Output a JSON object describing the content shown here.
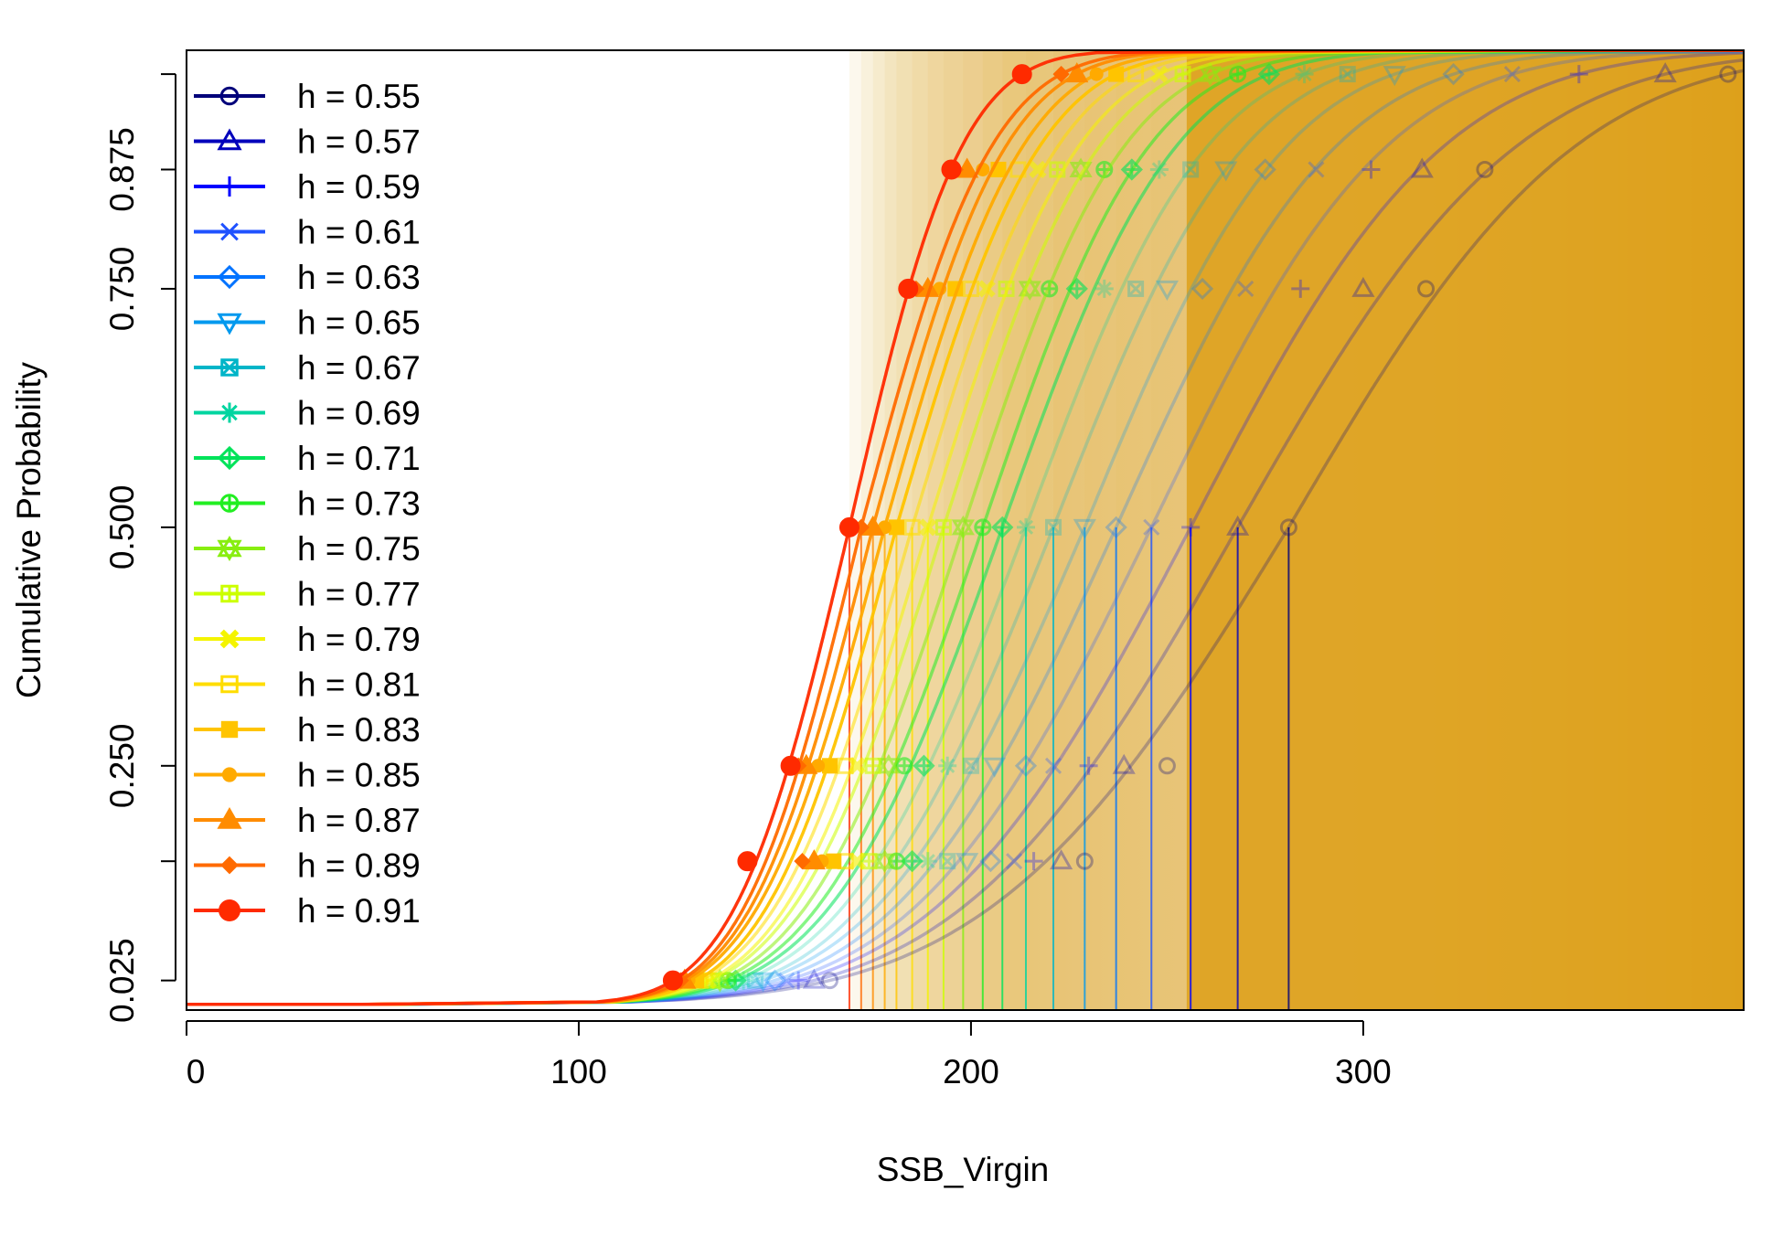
{
  "chart_data": {
    "type": "line",
    "title": "",
    "xlabel": "SSB_Virgin",
    "ylabel": "Cumulative Probability",
    "xlim": [
      0,
      397
    ],
    "ylim": [
      -0.006,
      1.0
    ],
    "x_ticks": [
      0,
      100,
      200,
      300
    ],
    "x_tick_labels": [
      "0",
      "100",
      "200",
      "300"
    ],
    "y_ticks": [
      0.025,
      0.15,
      0.25,
      0.5,
      0.75,
      0.875,
      0.975
    ],
    "y_tick_labels": [
      "0.025",
      "",
      "0.250",
      "0.500",
      "0.750",
      "0.875",
      ""
    ],
    "probability_levels": [
      0.025,
      0.15,
      0.25,
      0.5,
      0.75,
      0.875,
      0.975
    ],
    "grid": false,
    "legend_position": "top-left",
    "series": [
      {
        "name": "h = 0.55",
        "color": "#00007a",
        "symbol": "circle-open",
        "quantiles": [
          164,
          229,
          250,
          281,
          316,
          331,
          393
        ]
      },
      {
        "name": "h = 0.57",
        "color": "#0000bb",
        "symbol": "triangle-open",
        "quantiles": [
          160,
          223,
          239,
          268,
          300,
          315,
          377
        ]
      },
      {
        "name": "h = 0.59",
        "color": "#0000ff",
        "symbol": "plus",
        "quantiles": [
          156,
          216,
          230,
          256,
          284,
          302,
          355
        ]
      },
      {
        "name": "h = 0.61",
        "color": "#1f52ff",
        "symbol": "cross",
        "quantiles": [
          153,
          211,
          221,
          246,
          270,
          288,
          338
        ]
      },
      {
        "name": "h = 0.63",
        "color": "#0073ff",
        "symbol": "diamond-open",
        "quantiles": [
          150,
          205,
          214,
          237,
          259,
          275,
          323
        ]
      },
      {
        "name": "h = 0.65",
        "color": "#0099ee",
        "symbol": "triangle-down-open",
        "quantiles": [
          147,
          199,
          206,
          229,
          250,
          265,
          308
        ]
      },
      {
        "name": "h = 0.67",
        "color": "#00b5c8",
        "symbol": "square-x",
        "quantiles": [
          145,
          194,
          200,
          221,
          242,
          256,
          296
        ]
      },
      {
        "name": "h = 0.69",
        "color": "#00d5a0",
        "symbol": "asterisk",
        "quantiles": [
          142,
          189,
          194,
          214,
          234,
          248,
          285
        ]
      },
      {
        "name": "h = 0.71",
        "color": "#00e35a",
        "symbol": "diamond-plus",
        "quantiles": [
          140,
          185,
          188,
          208,
          227,
          241,
          276
        ]
      },
      {
        "name": "h = 0.73",
        "color": "#22ee22",
        "symbol": "circle-plus",
        "quantiles": [
          138,
          181,
          183,
          203,
          220,
          234,
          268
        ]
      },
      {
        "name": "h = 0.75",
        "color": "#88ee10",
        "symbol": "star-of-david",
        "quantiles": [
          136,
          178,
          179,
          198,
          215,
          228,
          261
        ]
      },
      {
        "name": "h = 0.77",
        "color": "#ccff00",
        "symbol": "square-plus",
        "quantiles": [
          134,
          174,
          175,
          193,
          209,
          222,
          254
        ]
      },
      {
        "name": "h = 0.79",
        "color": "#f4f400",
        "symbol": "square-x-filled",
        "quantiles": [
          133,
          171,
          171,
          189,
          204,
          217,
          248
        ]
      },
      {
        "name": "h = 0.81",
        "color": "#ffdd00",
        "symbol": "square-open",
        "quantiles": [
          131,
          168,
          168,
          185,
          200,
          212,
          242
        ]
      },
      {
        "name": "h = 0.83",
        "color": "#ffc400",
        "symbol": "square",
        "quantiles": [
          130,
          165,
          164,
          181,
          196,
          207,
          237
        ]
      },
      {
        "name": "h = 0.85",
        "color": "#ffaa00",
        "symbol": "circle-small",
        "quantiles": [
          128,
          162,
          161,
          178,
          192,
          203,
          232
        ]
      },
      {
        "name": "h = 0.87",
        "color": "#ff8c00",
        "symbol": "triangle",
        "quantiles": [
          127,
          160,
          158,
          175,
          189,
          199,
          227
        ]
      },
      {
        "name": "h = 0.89",
        "color": "#ff6a00",
        "symbol": "diamond",
        "quantiles": [
          126,
          157,
          156,
          172,
          186,
          196,
          223
        ]
      },
      {
        "name": "h = 0.91",
        "color": "#ff2a00",
        "symbol": "circle",
        "quantiles": [
          124,
          143,
          154,
          169,
          184,
          195,
          213
        ]
      }
    ],
    "shading_color": "#dda01a"
  }
}
